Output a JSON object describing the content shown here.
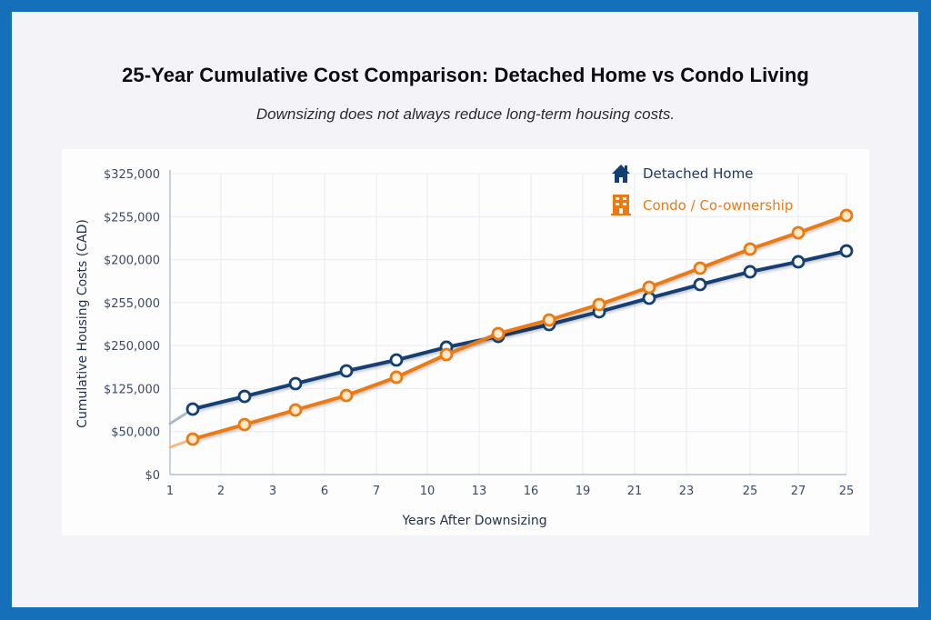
{
  "title": "25-Year Cumulative Cost Comparison: Detached Home vs Condo Living",
  "subtitle": "Downsizing does not always reduce long-term housing costs.",
  "colors": {
    "border": "#1670b9",
    "background": "#f3f3f8",
    "detached": "#143f73",
    "condo": "#ea7a13"
  },
  "chart_data": {
    "type": "line",
    "title": "25-Year Cumulative Cost Comparison: Detached Home vs Condo Living",
    "subtitle": "Downsizing does not always reduce long-term housing costs.",
    "xlabel": "Years After Downsizing",
    "ylabel": "Cumulative Housing Costs (CAD)",
    "x_tick_labels": [
      "1",
      "2",
      "3",
      "6",
      "7",
      "10",
      "13",
      "16",
      "19",
      "21",
      "23",
      "25",
      "27",
      "25"
    ],
    "y_tick_labels": [
      "$0",
      "$50,000",
      "$125,000",
      "$250,000",
      "$255,000",
      "$200,000",
      "$255,000",
      "$325,000"
    ],
    "ylim": [
      0,
      325000
    ],
    "grid": true,
    "legend_position": "top-right",
    "series": [
      {
        "name": "Detached Home",
        "icon": "house-icon",
        "color": "#143f73",
        "start_value": 55000,
        "values": [
          70700,
          84400,
          98200,
          111900,
          123700,
          137500,
          149200,
          162000,
          175800,
          190500,
          205200,
          219000,
          229800,
          241500
        ]
      },
      {
        "name": "Condo / Co-ownership",
        "icon": "building-icon",
        "color": "#ea7a13",
        "start_value": 29500,
        "values": [
          38300,
          54000,
          69700,
          85400,
          105100,
          129600,
          152200,
          166900,
          183600,
          202300,
          222900,
          243500,
          261200,
          279800
        ]
      }
    ]
  }
}
